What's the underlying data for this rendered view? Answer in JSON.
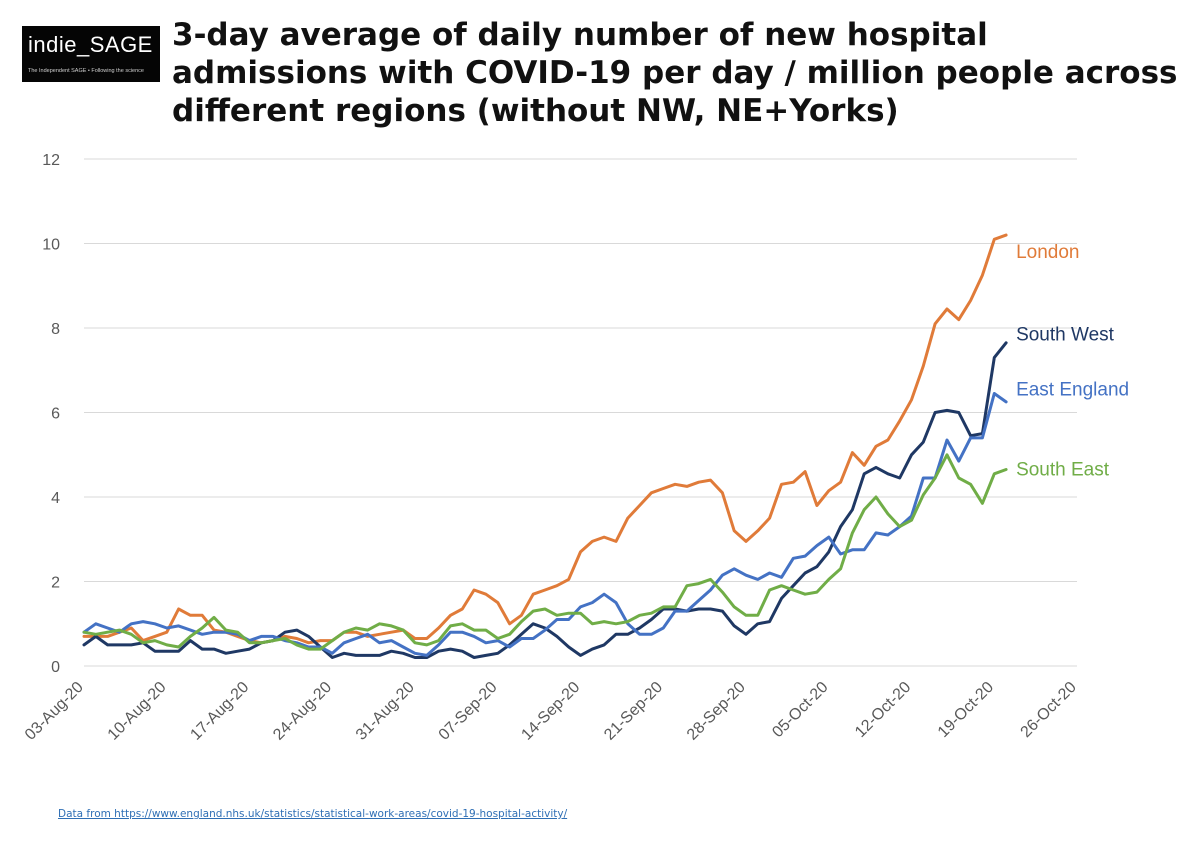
{
  "logo": {
    "brand": "indie_SAGE",
    "tagline": "The Independent SAGE • Following the science"
  },
  "source_note": "Data from https://www.england.nhs.uk/statistics/statistical-work-areas/covid-19-hospital-activity/",
  "chart_data": {
    "type": "line",
    "title": "3-day average of daily number of new hospital admissions with COVID-19 per day / million people across different regions (without NW, NE+Yorks)",
    "xlabel": "",
    "ylabel": "",
    "ylim": [
      0,
      12
    ],
    "yticks": [
      0,
      2,
      4,
      6,
      8,
      10,
      12
    ],
    "x_day_range": [
      0,
      84
    ],
    "xticks": [
      {
        "day": 0,
        "label": "03-Aug-20"
      },
      {
        "day": 7,
        "label": "10-Aug-20"
      },
      {
        "day": 14,
        "label": "17-Aug-20"
      },
      {
        "day": 21,
        "label": "24-Aug-20"
      },
      {
        "day": 28,
        "label": "31-Aug-20"
      },
      {
        "day": 35,
        "label": "07-Sep-20"
      },
      {
        "day": 42,
        "label": "14-Sep-20"
      },
      {
        "day": 49,
        "label": "21-Sep-20"
      },
      {
        "day": 56,
        "label": "28-Sep-20"
      },
      {
        "day": 63,
        "label": "05-Oct-20"
      },
      {
        "day": 70,
        "label": "12-Oct-20"
      },
      {
        "day": 77,
        "label": "19-Oct-20"
      },
      {
        "day": 84,
        "label": "26-Oct-20"
      }
    ],
    "grid": true,
    "legend": "inline labels at line ends",
    "series": [
      {
        "name": "London",
        "color": "#e07b39",
        "values": [
          0.7,
          0.7,
          0.7,
          0.8,
          0.9,
          0.6,
          0.7,
          0.8,
          1.35,
          1.2,
          1.2,
          0.85,
          0.8,
          0.7,
          0.6,
          0.55,
          0.6,
          0.7,
          0.65,
          0.55,
          0.6,
          0.6,
          0.8,
          0.8,
          0.7,
          0.75,
          0.8,
          0.85,
          0.65,
          0.65,
          0.9,
          1.2,
          1.35,
          1.8,
          1.7,
          1.5,
          1.0,
          1.2,
          1.7,
          1.8,
          1.9,
          2.05,
          2.7,
          2.95,
          3.05,
          2.95,
          3.5,
          3.8,
          4.1,
          4.2,
          4.3,
          4.25,
          4.35,
          4.4,
          4.1,
          3.2,
          2.95,
          3.2,
          3.5,
          4.3,
          4.35,
          4.6,
          3.8,
          4.15,
          4.35,
          5.05,
          4.75,
          5.2,
          5.35,
          5.8,
          6.3,
          7.1,
          8.1,
          8.45,
          8.2,
          8.65,
          9.25,
          10.1,
          10.2
        ]
      },
      {
        "name": "South West",
        "color": "#1f3864",
        "values": [
          0.5,
          0.7,
          0.5,
          0.5,
          0.5,
          0.55,
          0.35,
          0.35,
          0.35,
          0.6,
          0.4,
          0.4,
          0.3,
          0.35,
          0.4,
          0.55,
          0.6,
          0.8,
          0.85,
          0.7,
          0.45,
          0.2,
          0.3,
          0.25,
          0.25,
          0.25,
          0.35,
          0.3,
          0.2,
          0.2,
          0.35,
          0.4,
          0.35,
          0.2,
          0.25,
          0.3,
          0.5,
          0.75,
          1.0,
          0.9,
          0.7,
          0.45,
          0.25,
          0.4,
          0.5,
          0.75,
          0.75,
          0.9,
          1.1,
          1.35,
          1.35,
          1.3,
          1.35,
          1.35,
          1.3,
          0.95,
          0.75,
          1.0,
          1.05,
          1.6,
          1.9,
          2.2,
          2.35,
          2.7,
          3.3,
          3.7,
          4.55,
          4.7,
          4.55,
          4.45,
          5.0,
          5.3,
          6.0,
          6.05,
          6.0,
          5.45,
          5.5,
          7.3,
          7.65
        ]
      },
      {
        "name": "East England",
        "color": "#4472c4",
        "values": [
          0.8,
          1.0,
          0.9,
          0.8,
          1.0,
          1.05,
          1.0,
          0.9,
          0.95,
          0.85,
          0.75,
          0.8,
          0.8,
          0.75,
          0.6,
          0.7,
          0.7,
          0.6,
          0.55,
          0.45,
          0.45,
          0.3,
          0.55,
          0.65,
          0.75,
          0.55,
          0.6,
          0.45,
          0.3,
          0.25,
          0.5,
          0.8,
          0.8,
          0.7,
          0.55,
          0.6,
          0.45,
          0.65,
          0.65,
          0.85,
          1.1,
          1.1,
          1.4,
          1.5,
          1.7,
          1.5,
          1.0,
          0.75,
          0.75,
          0.9,
          1.3,
          1.3,
          1.55,
          1.8,
          2.15,
          2.3,
          2.15,
          2.05,
          2.2,
          2.1,
          2.55,
          2.6,
          2.85,
          3.05,
          2.65,
          2.75,
          2.75,
          3.15,
          3.1,
          3.3,
          3.55,
          4.45,
          4.45,
          5.35,
          4.85,
          5.4,
          5.4,
          6.45,
          6.25
        ]
      },
      {
        "name": "South East",
        "color": "#70ad47",
        "values": [
          0.8,
          0.75,
          0.8,
          0.85,
          0.75,
          0.55,
          0.6,
          0.5,
          0.45,
          0.7,
          0.9,
          1.15,
          0.85,
          0.8,
          0.55,
          0.55,
          0.6,
          0.65,
          0.5,
          0.4,
          0.4,
          0.6,
          0.8,
          0.9,
          0.85,
          1.0,
          0.95,
          0.85,
          0.55,
          0.5,
          0.6,
          0.95,
          1.0,
          0.85,
          0.85,
          0.65,
          0.75,
          1.05,
          1.3,
          1.35,
          1.2,
          1.25,
          1.25,
          1.0,
          1.05,
          1.0,
          1.05,
          1.2,
          1.25,
          1.4,
          1.4,
          1.9,
          1.95,
          2.05,
          1.75,
          1.4,
          1.2,
          1.2,
          1.8,
          1.9,
          1.8,
          1.7,
          1.75,
          2.05,
          2.3,
          3.15,
          3.7,
          4.0,
          3.6,
          3.3,
          3.45,
          4.05,
          4.45,
          5.0,
          4.45,
          4.3,
          3.85,
          4.55,
          4.65
        ]
      }
    ]
  }
}
